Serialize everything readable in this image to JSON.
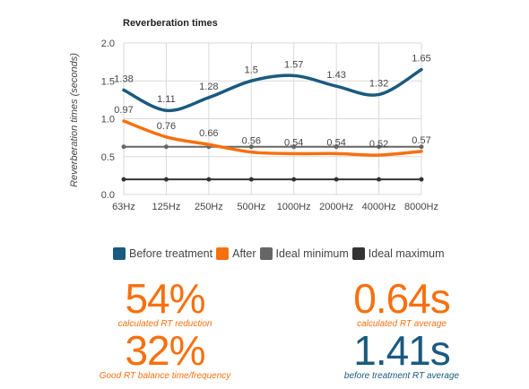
{
  "colors": {
    "before": "#1a5a7e",
    "after": "#f7700f",
    "ideal_min": "#666666",
    "ideal_max": "#333333",
    "grid": "#d9d9d9"
  },
  "chart_data": {
    "type": "line",
    "title": "Reverberation times",
    "xlabel": "",
    "ylabel": "Reverberation times (seconds)",
    "categories": [
      "63Hz",
      "125Hz",
      "250Hz",
      "500Hz",
      "1000Hz",
      "2000Hz",
      "4000Hz",
      "8000Hz"
    ],
    "ylim": [
      0,
      2.0
    ],
    "yticks": [
      "0.0",
      "0.5",
      "1.0",
      "1.5",
      "2.0"
    ],
    "grid": true,
    "legend_position": "bottom",
    "series": [
      {
        "name": "Before treatment",
        "key": "before",
        "values": [
          1.38,
          1.11,
          1.28,
          1.5,
          1.57,
          1.43,
          1.32,
          1.65
        ],
        "labels": [
          "1.38",
          "1.11",
          "1.28",
          "1.5",
          "1.57",
          "1.43",
          "1.32",
          "1.65"
        ],
        "show_labels": true,
        "smooth": true,
        "markers": false
      },
      {
        "name": "After",
        "key": "after",
        "values": [
          0.97,
          0.76,
          0.66,
          0.56,
          0.54,
          0.54,
          0.52,
          0.57
        ],
        "labels": [
          "0.97",
          "0.76",
          "0.66",
          "0.56",
          "0.54",
          "0.54",
          "0.52",
          "0.57"
        ],
        "show_labels": true,
        "smooth": true,
        "markers": false
      },
      {
        "name": "Ideal minimum",
        "key": "ideal_min",
        "values": [
          0.63,
          0.63,
          0.63,
          0.63,
          0.63,
          0.63,
          0.63,
          0.63
        ],
        "show_labels": false,
        "smooth": false,
        "markers": true
      },
      {
        "name": "Ideal maximum",
        "key": "ideal_max",
        "values": [
          0.2,
          0.2,
          0.2,
          0.2,
          0.2,
          0.2,
          0.2,
          0.2
        ],
        "show_labels": false,
        "smooth": false,
        "markers": true
      }
    ]
  },
  "stats": {
    "reduction": {
      "value": "54%",
      "label": "calculated RT reduction"
    },
    "average": {
      "value": "0.64s",
      "label": "calculated RT average"
    },
    "balance": {
      "value": "32%",
      "label": "Good RT balance time/frequency"
    },
    "before_average": {
      "value": "1.41s",
      "label": "before treatment RT average"
    }
  }
}
